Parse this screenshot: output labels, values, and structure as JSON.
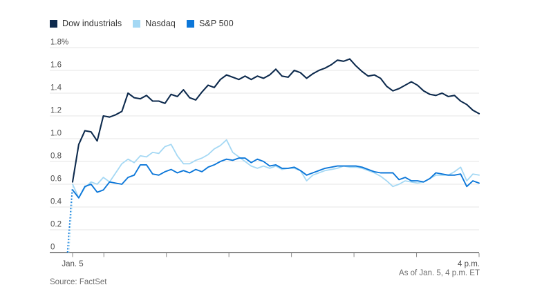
{
  "legend": {
    "items": [
      {
        "label": "Dow industrials",
        "color": "#0d2a4d"
      },
      {
        "label": "Nasdaq",
        "color": "#a4d8f4"
      },
      {
        "label": "S&P 500",
        "color": "#0c77d9"
      }
    ]
  },
  "footer": {
    "source": "Source: FactSet",
    "as_of": "As of Jan. 5, 4 p.m. ET"
  },
  "chart_data": {
    "type": "line",
    "x_axis": {
      "start_tick_label": "Jan. 5",
      "end_tick_label": "4 p.m.",
      "tick_minutes": [
        0,
        30,
        90,
        150,
        210,
        270,
        330,
        390
      ],
      "total_minutes": 390
    },
    "y_axis": {
      "tick_values": [
        0,
        0.2,
        0.4,
        0.6,
        0.8,
        1.0,
        1.2,
        1.4,
        1.6,
        1.8
      ],
      "tick_labels": [
        "0",
        "0.2",
        "0.4",
        "0.6",
        "0.8",
        "1.0",
        "1.2",
        "1.4",
        "1.6",
        "1.8%"
      ],
      "ylim": [
        0,
        1.8
      ],
      "unit": "percent change"
    },
    "grid": true,
    "legend_position": "top-left",
    "pre_open": {
      "style": "dotted",
      "from_value": 0,
      "to_value": 0.56,
      "note": "dotted jump from 0 at the open"
    },
    "series": [
      {
        "name": "Dow industrials",
        "color": "#0d2a4d",
        "width": 2.1,
        "values": [
          0.62,
          0.95,
          1.07,
          1.06,
          0.98,
          1.2,
          1.19,
          1.21,
          1.24,
          1.4,
          1.36,
          1.35,
          1.38,
          1.33,
          1.33,
          1.31,
          1.39,
          1.37,
          1.43,
          1.36,
          1.34,
          1.41,
          1.47,
          1.45,
          1.52,
          1.56,
          1.54,
          1.52,
          1.55,
          1.52,
          1.55,
          1.53,
          1.56,
          1.61,
          1.55,
          1.54,
          1.6,
          1.58,
          1.53,
          1.57,
          1.6,
          1.62,
          1.65,
          1.69,
          1.68,
          1.7,
          1.64,
          1.59,
          1.55,
          1.56,
          1.53,
          1.46,
          1.42,
          1.44,
          1.47,
          1.5,
          1.47,
          1.42,
          1.39,
          1.38,
          1.4,
          1.37,
          1.38,
          1.33,
          1.3,
          1.25,
          1.22
        ]
      },
      {
        "name": "Nasdaq",
        "color": "#a4d8f4",
        "width": 1.8,
        "values": [
          0.6,
          0.48,
          0.57,
          0.62,
          0.6,
          0.66,
          0.62,
          0.7,
          0.78,
          0.82,
          0.79,
          0.85,
          0.84,
          0.88,
          0.87,
          0.93,
          0.95,
          0.85,
          0.78,
          0.78,
          0.81,
          0.83,
          0.86,
          0.91,
          0.94,
          0.99,
          0.88,
          0.84,
          0.8,
          0.76,
          0.74,
          0.76,
          0.74,
          0.76,
          0.73,
          0.74,
          0.74,
          0.72,
          0.63,
          0.68,
          0.7,
          0.72,
          0.73,
          0.74,
          0.76,
          0.75,
          0.75,
          0.74,
          0.72,
          0.7,
          0.67,
          0.63,
          0.58,
          0.6,
          0.63,
          0.62,
          0.61,
          0.62,
          0.65,
          0.68,
          0.68,
          0.68,
          0.71,
          0.75,
          0.63,
          0.69,
          0.68
        ]
      },
      {
        "name": "S&P 500",
        "color": "#0c77d9",
        "width": 1.9,
        "values": [
          0.55,
          0.48,
          0.58,
          0.6,
          0.53,
          0.55,
          0.62,
          0.61,
          0.6,
          0.66,
          0.68,
          0.77,
          0.77,
          0.69,
          0.68,
          0.71,
          0.73,
          0.7,
          0.72,
          0.7,
          0.73,
          0.71,
          0.75,
          0.77,
          0.8,
          0.82,
          0.81,
          0.83,
          0.83,
          0.79,
          0.82,
          0.8,
          0.76,
          0.77,
          0.74,
          0.74,
          0.75,
          0.72,
          0.68,
          0.7,
          0.72,
          0.74,
          0.75,
          0.76,
          0.76,
          0.76,
          0.76,
          0.75,
          0.73,
          0.71,
          0.7,
          0.7,
          0.7,
          0.64,
          0.66,
          0.63,
          0.63,
          0.62,
          0.65,
          0.7,
          0.69,
          0.68,
          0.68,
          0.69,
          0.58,
          0.63,
          0.61
        ]
      }
    ],
    "style_colors": {
      "gridline": "#e6e6e6",
      "baseline": "#8a8a8a",
      "axis_text": "#4f4f4f",
      "footnote_text": "#6e6e6e"
    }
  }
}
